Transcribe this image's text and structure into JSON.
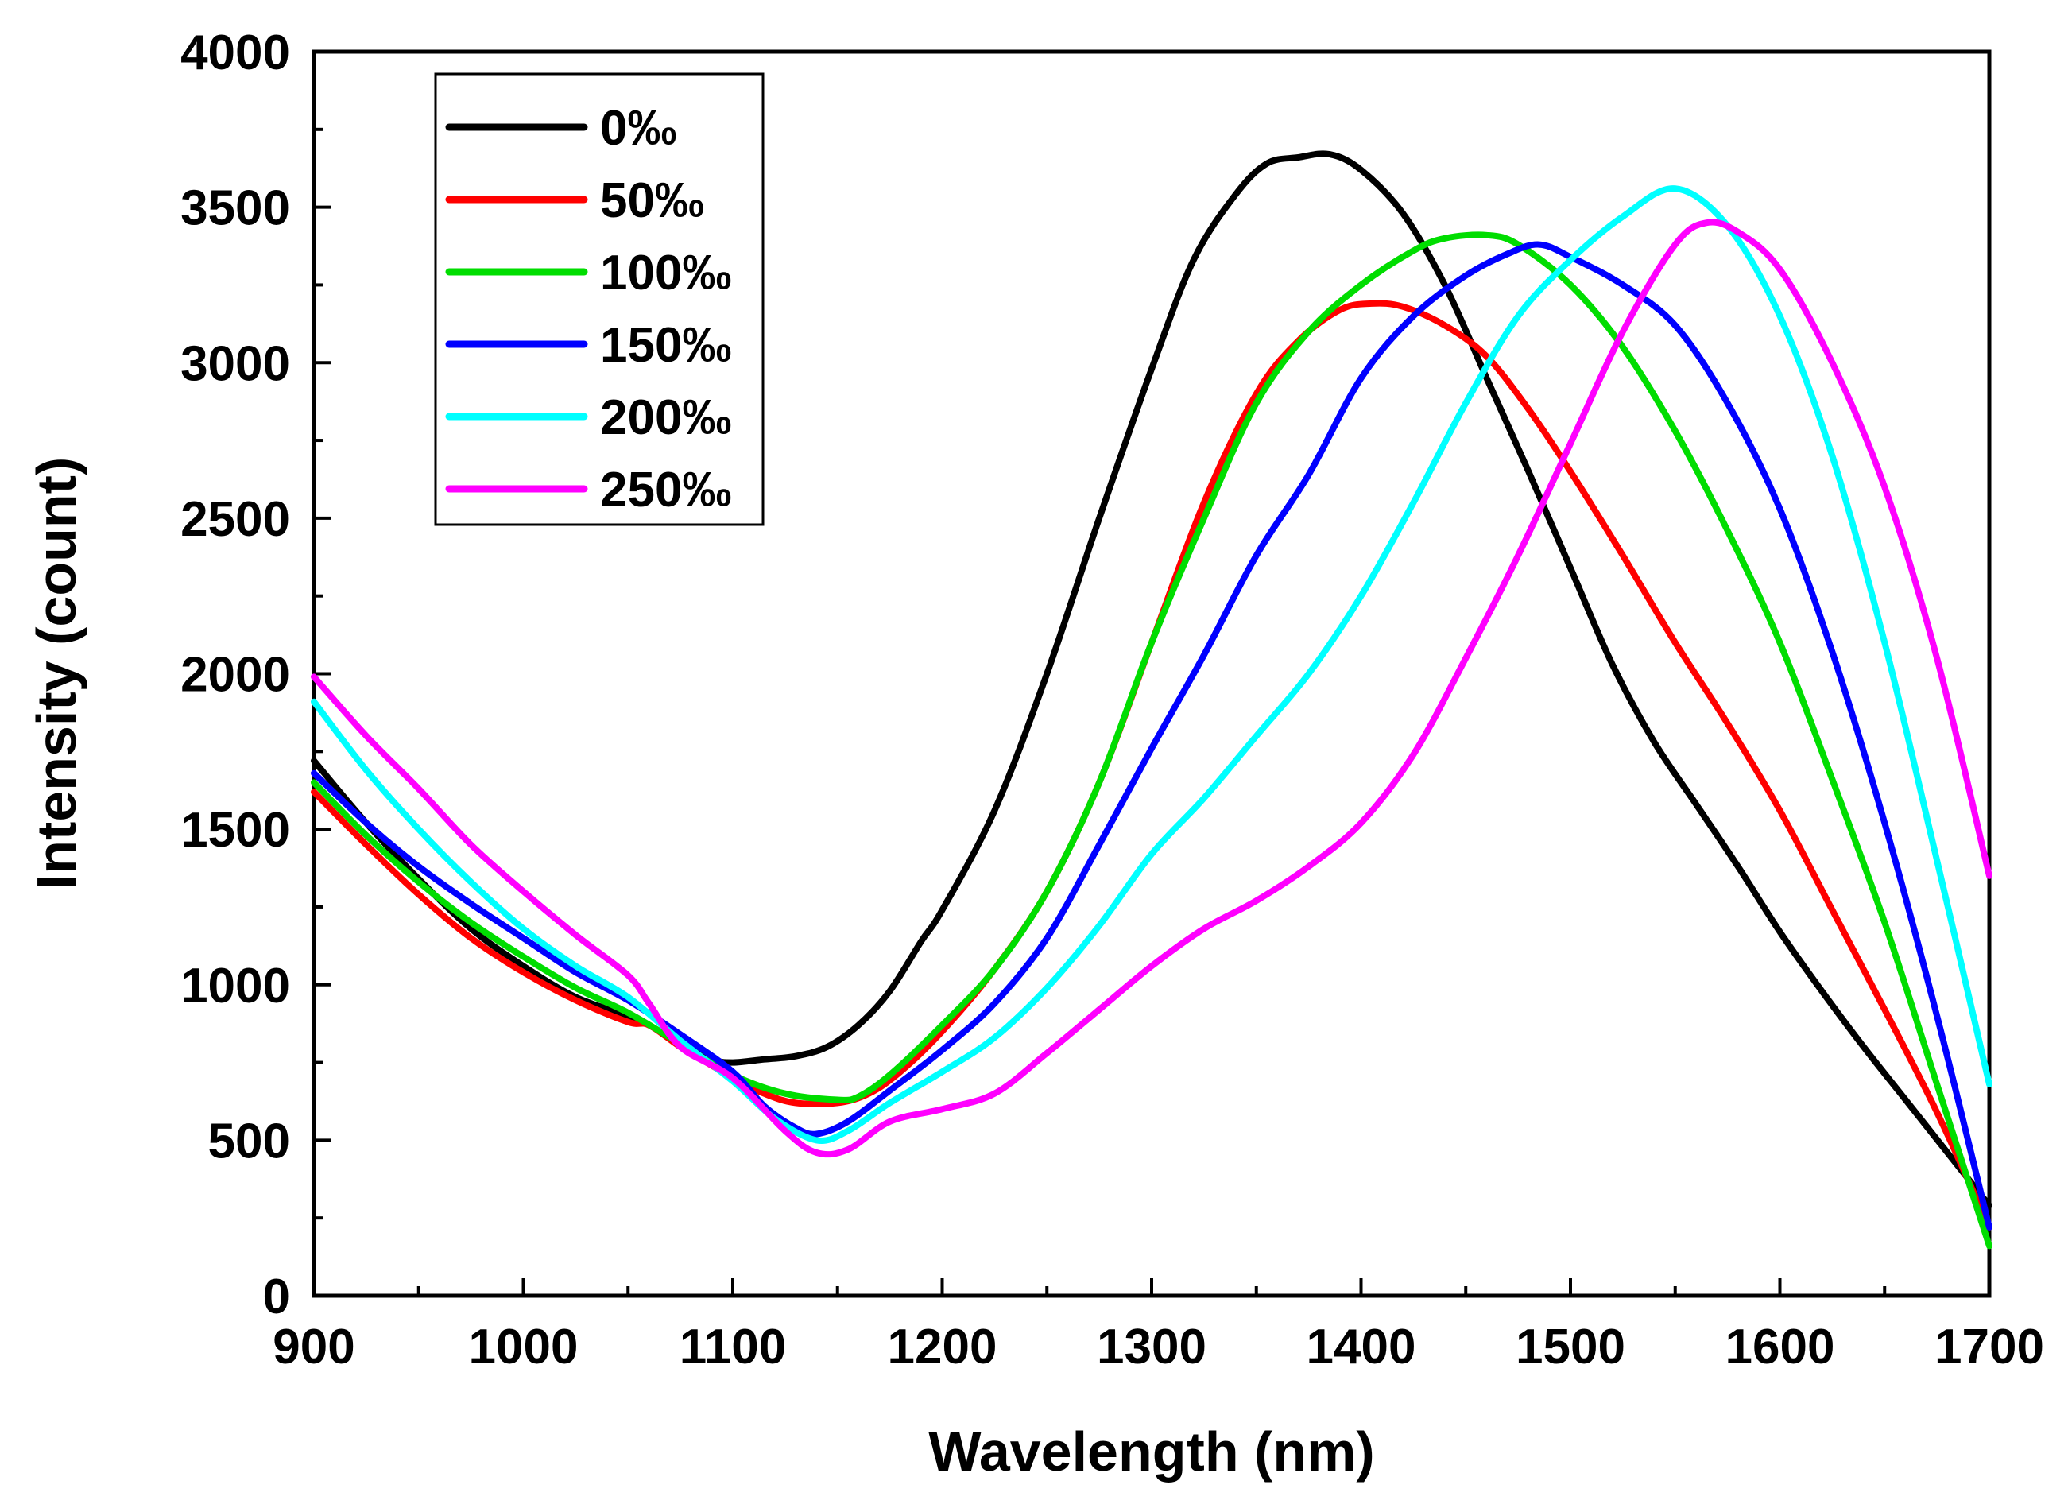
{
  "chart_data": {
    "type": "line",
    "title": "",
    "xlabel": "Wavelength (nm)",
    "ylabel": "Intensity (count)",
    "xlim": [
      900,
      1700
    ],
    "ylim": [
      0,
      4000
    ],
    "x_ticks": [
      900,
      1000,
      1100,
      1200,
      1300,
      1400,
      1500,
      1600,
      1700
    ],
    "y_ticks": [
      0,
      500,
      1000,
      1500,
      2000,
      2500,
      3000,
      3500,
      4000
    ],
    "x_tick_labels": [
      "900",
      "1000",
      "1100",
      "1200",
      "1300",
      "1400",
      "1500",
      "1600",
      "1700"
    ],
    "y_tick_labels": [
      "0",
      "500",
      "1000",
      "1500",
      "2000",
      "2500",
      "3000",
      "3500",
      "4000"
    ],
    "grid": false,
    "legend_position": "top-left",
    "series": [
      {
        "name": "0‰",
        "color": "#000000",
        "points": [
          [
            900,
            1720
          ],
          [
            925,
            1520
          ],
          [
            950,
            1340
          ],
          [
            975,
            1180
          ],
          [
            1000,
            1060
          ],
          [
            1025,
            960
          ],
          [
            1050,
            900
          ],
          [
            1060,
            870
          ],
          [
            1075,
            810
          ],
          [
            1090,
            760
          ],
          [
            1100,
            750
          ],
          [
            1115,
            760
          ],
          [
            1130,
            770
          ],
          [
            1145,
            800
          ],
          [
            1160,
            870
          ],
          [
            1175,
            980
          ],
          [
            1190,
            1140
          ],
          [
            1200,
            1240
          ],
          [
            1225,
            1560
          ],
          [
            1250,
            2000
          ],
          [
            1275,
            2500
          ],
          [
            1300,
            2980
          ],
          [
            1320,
            3330
          ],
          [
            1340,
            3540
          ],
          [
            1355,
            3640
          ],
          [
            1370,
            3660
          ],
          [
            1385,
            3670
          ],
          [
            1400,
            3620
          ],
          [
            1420,
            3480
          ],
          [
            1440,
            3250
          ],
          [
            1460,
            2950
          ],
          [
            1480,
            2650
          ],
          [
            1500,
            2340
          ],
          [
            1520,
            2030
          ],
          [
            1540,
            1780
          ],
          [
            1560,
            1580
          ],
          [
            1580,
            1380
          ],
          [
            1600,
            1170
          ],
          [
            1620,
            980
          ],
          [
            1640,
            800
          ],
          [
            1660,
            630
          ],
          [
            1680,
            460
          ],
          [
            1700,
            290
          ]
        ]
      },
      {
        "name": "50‰",
        "color": "#ff0000",
        "points": [
          [
            900,
            1620
          ],
          [
            925,
            1450
          ],
          [
            950,
            1290
          ],
          [
            975,
            1150
          ],
          [
            1000,
            1040
          ],
          [
            1025,
            950
          ],
          [
            1050,
            880
          ],
          [
            1060,
            870
          ],
          [
            1075,
            800
          ],
          [
            1090,
            740
          ],
          [
            1100,
            700
          ],
          [
            1115,
            650
          ],
          [
            1130,
            620
          ],
          [
            1150,
            620
          ],
          [
            1165,
            650
          ],
          [
            1180,
            720
          ],
          [
            1200,
            850
          ],
          [
            1225,
            1050
          ],
          [
            1250,
            1300
          ],
          [
            1275,
            1650
          ],
          [
            1300,
            2100
          ],
          [
            1325,
            2550
          ],
          [
            1350,
            2900
          ],
          [
            1370,
            3070
          ],
          [
            1390,
            3170
          ],
          [
            1405,
            3190
          ],
          [
            1420,
            3180
          ],
          [
            1440,
            3120
          ],
          [
            1460,
            3020
          ],
          [
            1480,
            2850
          ],
          [
            1500,
            2650
          ],
          [
            1525,
            2380
          ],
          [
            1550,
            2100
          ],
          [
            1575,
            1840
          ],
          [
            1600,
            1560
          ],
          [
            1625,
            1240
          ],
          [
            1650,
            920
          ],
          [
            1675,
            590
          ],
          [
            1700,
            220
          ]
        ]
      },
      {
        "name": "100‰",
        "color": "#00dd00",
        "points": [
          [
            900,
            1650
          ],
          [
            925,
            1480
          ],
          [
            950,
            1330
          ],
          [
            975,
            1200
          ],
          [
            1000,
            1090
          ],
          [
            1025,
            990
          ],
          [
            1050,
            910
          ],
          [
            1075,
            810
          ],
          [
            1100,
            710
          ],
          [
            1125,
            650
          ],
          [
            1150,
            630
          ],
          [
            1160,
            640
          ],
          [
            1175,
            710
          ],
          [
            1200,
            870
          ],
          [
            1225,
            1050
          ],
          [
            1250,
            1300
          ],
          [
            1275,
            1650
          ],
          [
            1300,
            2100
          ],
          [
            1325,
            2500
          ],
          [
            1350,
            2870
          ],
          [
            1375,
            3100
          ],
          [
            1400,
            3250
          ],
          [
            1425,
            3360
          ],
          [
            1440,
            3400
          ],
          [
            1460,
            3410
          ],
          [
            1475,
            3380
          ],
          [
            1500,
            3250
          ],
          [
            1525,
            3050
          ],
          [
            1550,
            2780
          ],
          [
            1575,
            2460
          ],
          [
            1600,
            2100
          ],
          [
            1625,
            1660
          ],
          [
            1650,
            1200
          ],
          [
            1675,
            680
          ],
          [
            1700,
            160
          ]
        ]
      },
      {
        "name": "150‰",
        "color": "#0000ff",
        "points": [
          [
            900,
            1680
          ],
          [
            925,
            1520
          ],
          [
            950,
            1380
          ],
          [
            975,
            1260
          ],
          [
            1000,
            1150
          ],
          [
            1025,
            1040
          ],
          [
            1050,
            950
          ],
          [
            1075,
            840
          ],
          [
            1100,
            720
          ],
          [
            1115,
            610
          ],
          [
            1130,
            540
          ],
          [
            1140,
            520
          ],
          [
            1155,
            560
          ],
          [
            1175,
            660
          ],
          [
            1200,
            790
          ],
          [
            1225,
            940
          ],
          [
            1250,
            1150
          ],
          [
            1275,
            1450
          ],
          [
            1300,
            1760
          ],
          [
            1325,
            2060
          ],
          [
            1350,
            2380
          ],
          [
            1375,
            2640
          ],
          [
            1400,
            2950
          ],
          [
            1425,
            3150
          ],
          [
            1450,
            3280
          ],
          [
            1470,
            3350
          ],
          [
            1485,
            3380
          ],
          [
            1500,
            3340
          ],
          [
            1525,
            3250
          ],
          [
            1550,
            3120
          ],
          [
            1575,
            2870
          ],
          [
            1600,
            2530
          ],
          [
            1625,
            2070
          ],
          [
            1650,
            1520
          ],
          [
            1675,
            900
          ],
          [
            1700,
            220
          ]
        ]
      },
      {
        "name": "200‰",
        "color": "#00ffff",
        "points": [
          [
            900,
            1910
          ],
          [
            925,
            1690
          ],
          [
            950,
            1500
          ],
          [
            975,
            1330
          ],
          [
            1000,
            1180
          ],
          [
            1025,
            1060
          ],
          [
            1050,
            960
          ],
          [
            1075,
            820
          ],
          [
            1100,
            690
          ],
          [
            1120,
            570
          ],
          [
            1140,
            500
          ],
          [
            1155,
            530
          ],
          [
            1175,
            620
          ],
          [
            1200,
            720
          ],
          [
            1225,
            830
          ],
          [
            1250,
            990
          ],
          [
            1275,
            1190
          ],
          [
            1300,
            1420
          ],
          [
            1325,
            1600
          ],
          [
            1350,
            1800
          ],
          [
            1375,
            2000
          ],
          [
            1400,
            2250
          ],
          [
            1425,
            2550
          ],
          [
            1450,
            2870
          ],
          [
            1475,
            3150
          ],
          [
            1500,
            3330
          ],
          [
            1525,
            3470
          ],
          [
            1550,
            3560
          ],
          [
            1575,
            3440
          ],
          [
            1600,
            3150
          ],
          [
            1625,
            2700
          ],
          [
            1650,
            2100
          ],
          [
            1675,
            1400
          ],
          [
            1700,
            680
          ]
        ]
      },
      {
        "name": "250‰",
        "color": "#ff00ff",
        "points": [
          [
            900,
            1990
          ],
          [
            925,
            1800
          ],
          [
            950,
            1630
          ],
          [
            975,
            1450
          ],
          [
            1000,
            1300
          ],
          [
            1025,
            1160
          ],
          [
            1050,
            1030
          ],
          [
            1060,
            940
          ],
          [
            1075,
            800
          ],
          [
            1100,
            700
          ],
          [
            1125,
            530
          ],
          [
            1140,
            460
          ],
          [
            1155,
            470
          ],
          [
            1175,
            560
          ],
          [
            1200,
            600
          ],
          [
            1225,
            650
          ],
          [
            1250,
            780
          ],
          [
            1275,
            920
          ],
          [
            1300,
            1060
          ],
          [
            1325,
            1180
          ],
          [
            1350,
            1270
          ],
          [
            1375,
            1380
          ],
          [
            1400,
            1520
          ],
          [
            1425,
            1740
          ],
          [
            1450,
            2050
          ],
          [
            1475,
            2380
          ],
          [
            1500,
            2740
          ],
          [
            1525,
            3100
          ],
          [
            1550,
            3380
          ],
          [
            1565,
            3450
          ],
          [
            1580,
            3420
          ],
          [
            1600,
            3300
          ],
          [
            1625,
            3000
          ],
          [
            1650,
            2600
          ],
          [
            1675,
            2050
          ],
          [
            1700,
            1350
          ]
        ]
      }
    ]
  }
}
